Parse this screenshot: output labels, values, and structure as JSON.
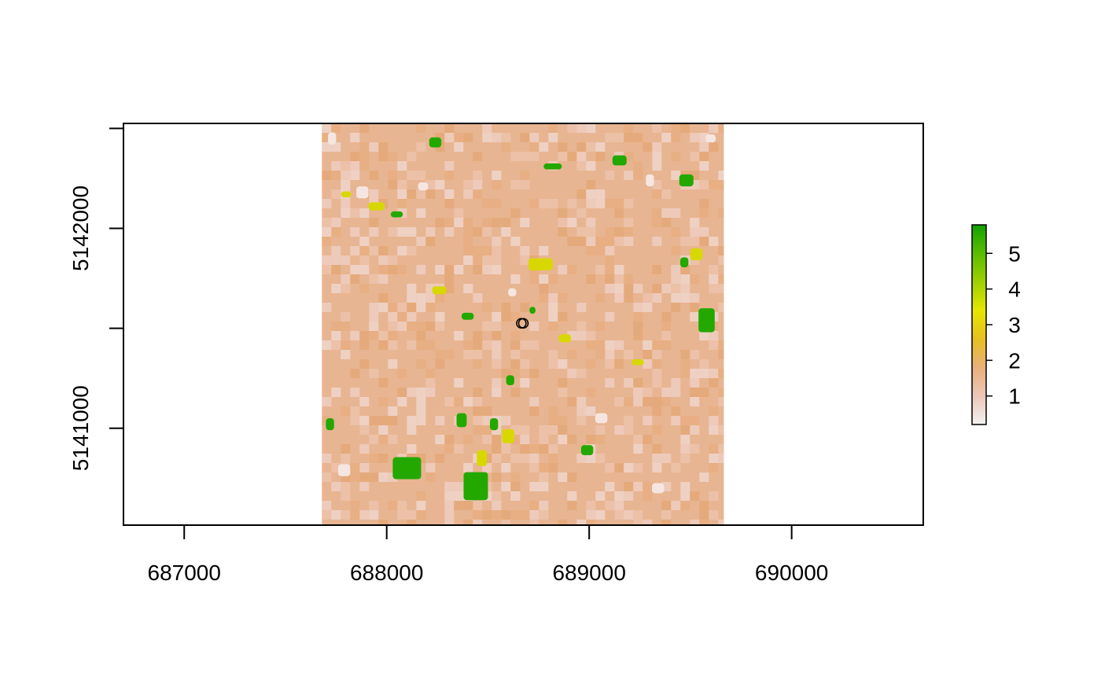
{
  "chart_data": {
    "type": "heatmap",
    "title": "",
    "xlabel": "",
    "ylabel": "",
    "xlim": [
      686700,
      690650
    ],
    "ylim": [
      5140515,
      5142525
    ],
    "raster_extent": {
      "xmin": 687680,
      "xmax": 689665,
      "ymin": 5140515,
      "ymax": 5142525
    },
    "x_ticks": [
      687000,
      688000,
      689000,
      690000
    ],
    "x_tick_labels": [
      "687000",
      "688000",
      "689000",
      "690000"
    ],
    "y_ticks": [
      5141000,
      5141500,
      5142000,
      5142500
    ],
    "y_tick_labels": [
      "5141000",
      "",
      "5142000",
      ""
    ],
    "legend": {
      "position": "right",
      "range": [
        0.2,
        5.8
      ],
      "ticks": [
        1,
        2,
        3,
        4,
        5
      ],
      "tick_labels": [
        "1",
        "2",
        "3",
        "4",
        "5"
      ],
      "colors": [
        "#f2f2f2",
        "#ecc6b8",
        "#e8b07a",
        "#e6c020",
        "#e6e600",
        "#9fd000",
        "#5bbd00",
        "#12a000"
      ]
    },
    "points": [
      {
        "x": 688665,
        "y": 5141525
      },
      {
        "x": 688675,
        "y": 5141525
      }
    ],
    "features": {
      "green_patches": [
        [
          688240,
          5142430,
          60,
          50
        ],
        [
          688820,
          5142310,
          90,
          30
        ],
        [
          689150,
          5142340,
          70,
          50
        ],
        [
          689480,
          5142240,
          70,
          60
        ],
        [
          688050,
          5142070,
          60,
          30
        ],
        [
          688400,
          5141560,
          60,
          35
        ],
        [
          688720,
          5141590,
          30,
          35
        ],
        [
          689580,
          5141540,
          80,
          120
        ],
        [
          689470,
          5141830,
          40,
          50
        ],
        [
          688100,
          5140800,
          140,
          110
        ],
        [
          688440,
          5140710,
          120,
          140
        ],
        [
          688370,
          5141040,
          50,
          70
        ],
        [
          687720,
          5141020,
          40,
          60
        ],
        [
          688990,
          5140890,
          60,
          50
        ],
        [
          688610,
          5141240,
          40,
          50
        ],
        [
          688530,
          5141020,
          40,
          60
        ]
      ],
      "yellow_patches": [
        [
          688760,
          5141820,
          120,
          60
        ],
        [
          688260,
          5141690,
          70,
          40
        ],
        [
          688880,
          5141450,
          60,
          40
        ],
        [
          689240,
          5141330,
          60,
          30
        ],
        [
          687950,
          5142110,
          80,
          40
        ],
        [
          688470,
          5140850,
          50,
          80
        ],
        [
          688600,
          5140960,
          60,
          70
        ],
        [
          689530,
          5141870,
          60,
          60
        ],
        [
          687800,
          5142170,
          50,
          30
        ]
      ],
      "white_patches": [
        [
          687730,
          5142450,
          40,
          60
        ],
        [
          687880,
          5142180,
          60,
          60
        ],
        [
          688180,
          5142210,
          50,
          40
        ],
        [
          688620,
          5141680,
          40,
          40
        ],
        [
          689060,
          5141050,
          60,
          50
        ],
        [
          687790,
          5140790,
          60,
          60
        ],
        [
          689340,
          5140700,
          60,
          50
        ],
        [
          689300,
          5142240,
          40,
          60
        ],
        [
          689600,
          5142450,
          50,
          40
        ]
      ]
    }
  }
}
